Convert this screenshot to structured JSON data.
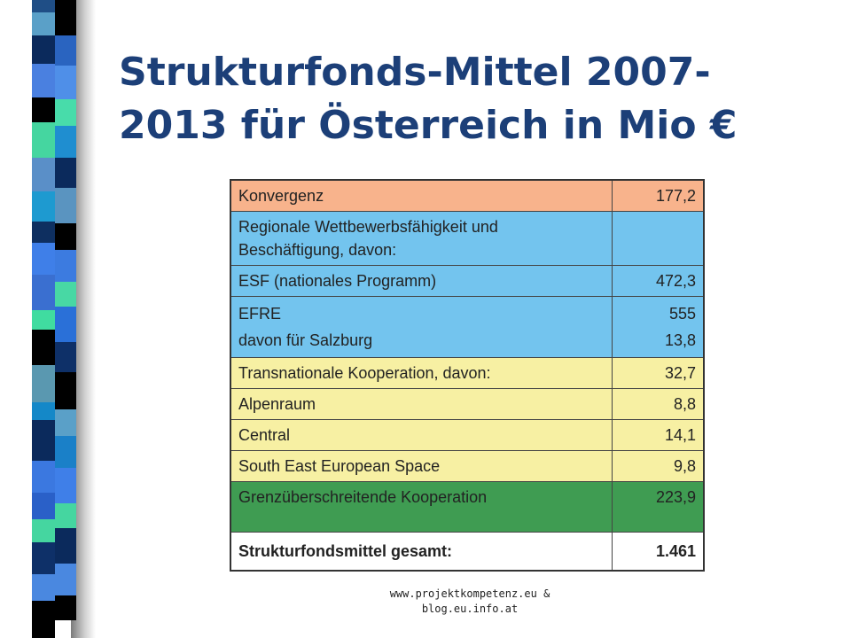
{
  "slide": {
    "title_line1": "Strukturfonds-Mittel 2007-",
    "title_line2": "2013 für Österreich in Mio €",
    "footer_line1": "www.projektkompetenz.eu &",
    "footer_line2": "blog.eu.info.at"
  },
  "table": {
    "rows": [
      {
        "label": "Konvergenz",
        "value": "177,2"
      },
      {
        "label1": "Regionale Wettbewerbsfähigkeit und",
        "label2": "Beschäftigung, davon:",
        "value": ""
      },
      {
        "label": "ESF (nationales Programm)",
        "value": "472,3"
      },
      {
        "label1": "EFRE",
        "label2": "davon für Salzburg",
        "value1": "555",
        "value2": "13,8"
      },
      {
        "label": "Transnationale Kooperation, davon:",
        "value": "32,7"
      },
      {
        "label": "Alpenraum",
        "value": "8,8"
      },
      {
        "label": "Central",
        "value": "14,1"
      },
      {
        "label": "South East European Space",
        "value": "9,8"
      },
      {
        "label": "Grenzüberschreitende Kooperation",
        "value": "223,9"
      },
      {
        "label": "Strukturfondsmittel gesamt:",
        "value": "1.461"
      }
    ]
  },
  "colors": {
    "title": "#1c3f78",
    "konvergenz": "#f8b38c",
    "regional": "#73c4ee",
    "transnational": "#f7f0a3",
    "cross_border": "#3f9c52"
  }
}
